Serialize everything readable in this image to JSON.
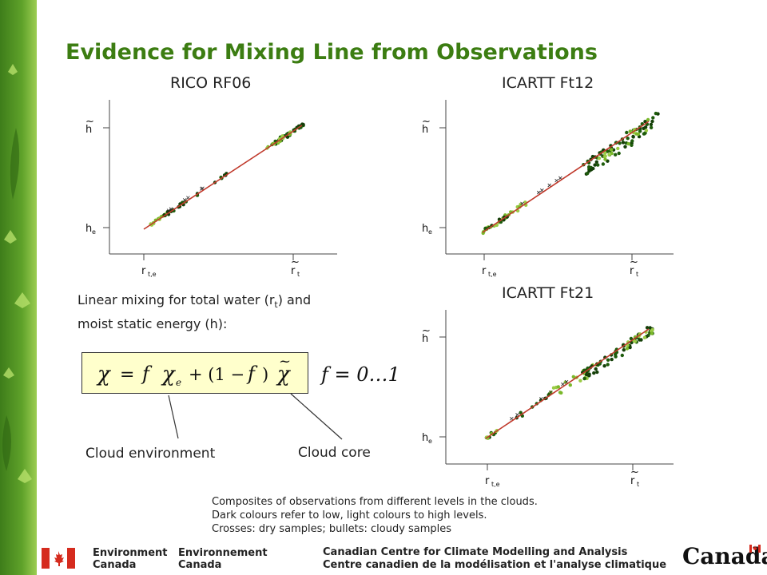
{
  "slide": {
    "title": "Evidence for Mixing Line from Observations",
    "mixing_text": {
      "line1_pre": "Linear mixing for total water (r",
      "line1_sub": "t",
      "line1_post": ") and",
      "line2": "moist static energy (h):"
    },
    "equation": {
      "chi": "χ",
      "eq": "=",
      "f": "f",
      "e_sub": "e",
      "plus": "+ (1 −",
      "close": ")",
      "range": "f = 0…1"
    },
    "callouts": {
      "environment": "Cloud environment",
      "core": "Cloud core"
    },
    "notes": [
      "Composites of observations from different levels in the clouds.",
      "Dark colours refer to low, light colours to high levels.",
      "Crosses: dry samples; bullets: cloudy samples"
    ],
    "footer": {
      "env_en_1": "Environment",
      "env_en_2": "Canada",
      "env_fr_1": "Environnement",
      "env_fr_2": "Canada",
      "centre_en": "Canadian Centre for Climate Modelling and Analysis",
      "centre_fr": "Centre canadien de la modélisation et l'analyse climatique",
      "wordmark": "Canada"
    },
    "colors": {
      "title": "#3c7d12",
      "mixing_line": "#c0392b",
      "dark_green": "#1e5c0c",
      "light_green": "#7ab82a",
      "equation_box": "#ffffcc"
    }
  },
  "chart_data": [
    {
      "type": "scatter",
      "title": "RICO RF06",
      "x_ticks": [
        "r_t,e",
        "r̃_t"
      ],
      "y_ticks": [
        "h_e",
        "h̃"
      ],
      "mixing_line": [
        [
          0,
          0
        ],
        [
          1,
          1
        ]
      ],
      "clusters": [
        {
          "shade": "light",
          "x": [
            0.02,
            0.2
          ],
          "spread": 0.01,
          "n": 14
        },
        {
          "shade": "dark",
          "x": [
            0.12,
            0.35
          ],
          "spread": 0.01,
          "n": 18
        },
        {
          "shade": "dark",
          "x": [
            0.45,
            0.55
          ],
          "spread": 0.01,
          "n": 6
        },
        {
          "shade": "dark",
          "x": [
            0.8,
            1.02
          ],
          "spread": 0.015,
          "n": 34
        },
        {
          "shade": "light",
          "x": [
            0.78,
            0.95
          ],
          "spread": 0.015,
          "n": 14
        }
      ]
    },
    {
      "type": "scatter",
      "title": "ICARTT Ft12",
      "x_ticks": [
        "r_t,e",
        "r̃_t"
      ],
      "y_ticks": [
        "h_e",
        "h̃"
      ],
      "mixing_line": [
        [
          0,
          0
        ],
        [
          1,
          1
        ]
      ],
      "clusters": [
        {
          "shade": "light",
          "x": [
            0.0,
            0.28
          ],
          "spread": 0.02,
          "n": 28
        },
        {
          "shade": "dark",
          "x": [
            0.02,
            0.16
          ],
          "spread": 0.015,
          "n": 10
        },
        {
          "shade": "dark",
          "x": [
            0.6,
            1.06
          ],
          "spread": 0.07,
          "n": 70
        },
        {
          "shade": "light",
          "x": [
            0.7,
            1.0
          ],
          "spread": 0.05,
          "n": 18
        }
      ]
    },
    {
      "type": "scatter",
      "title": "ICARTT Ft21",
      "x_ticks": [
        "r_t,e",
        "r̃_t"
      ],
      "y_ticks": [
        "h_e",
        "h̃"
      ],
      "mixing_line": [
        [
          0,
          0
        ],
        [
          1,
          1
        ]
      ],
      "clusters": [
        {
          "shade": "dark",
          "x": [
            0.0,
            0.05
          ],
          "spread": 0.01,
          "n": 6
        },
        {
          "shade": "light",
          "x": [
            0.0,
            0.08
          ],
          "spread": 0.01,
          "n": 6
        },
        {
          "shade": "dark",
          "x": [
            0.15,
            0.4
          ],
          "spread": 0.02,
          "n": 10
        },
        {
          "shade": "light",
          "x": [
            0.4,
            0.7
          ],
          "spread": 0.05,
          "n": 20
        },
        {
          "shade": "dark",
          "x": [
            0.6,
            1.02
          ],
          "spread": 0.05,
          "n": 60
        },
        {
          "shade": "light",
          "x": [
            0.85,
            1.02
          ],
          "spread": 0.04,
          "n": 14
        }
      ]
    }
  ]
}
